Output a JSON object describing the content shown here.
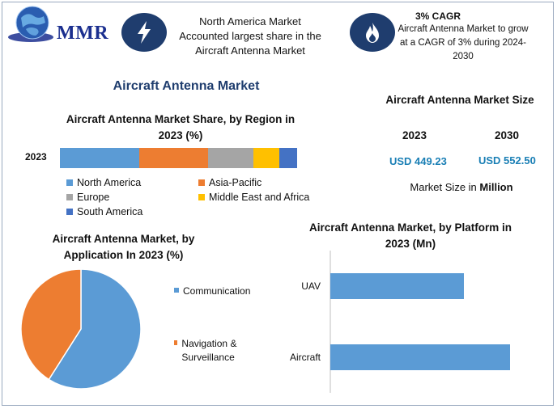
{
  "brand": {
    "logo_text": "MMR"
  },
  "header": {
    "box1_text": "North America Market Accounted largest share in the Aircraft Antenna Market",
    "box1_icon": "lightning-icon",
    "box2_title": "3% CAGR",
    "box2_text": "Aircraft Antenna Market to grow at a CAGR of 3% during 2024-2030",
    "box2_icon": "flame-icon"
  },
  "main_title": "Aircraft Antenna Market",
  "market_size": {
    "title": "Aircraft Antenna Market Size",
    "year1": "2023",
    "year2": "2030",
    "value1": "USD 449.23",
    "value2": "USD 552.50",
    "note_prefix": "Market Size in ",
    "note_unit": "Million"
  },
  "colors": {
    "north_america": "#5b9bd5",
    "asia_pacific": "#ed7d31",
    "europe": "#a5a5a5",
    "middle_east_africa": "#ffc000",
    "south_america": "#4472c4",
    "icon_circle": "#1f3d6e"
  },
  "chart_data": [
    {
      "type": "bar",
      "orientation": "horizontal-stacked",
      "title": "Aircraft Antenna Market Share, by Region in 2023 (%)",
      "categories": [
        "2023"
      ],
      "series": [
        {
          "name": "North America",
          "values": [
            33.5
          ]
        },
        {
          "name": "Asia-Pacific",
          "values": [
            29
          ]
        },
        {
          "name": "Europe",
          "values": [
            19
          ]
        },
        {
          "name": "Middle East and Africa",
          "values": [
            11
          ]
        },
        {
          "name": "South America",
          "values": [
            7.5
          ]
        }
      ],
      "legend": "bottom"
    },
    {
      "type": "pie",
      "title": "Aircraft Antenna Market, by Application In 2023 (%)",
      "labels": [
        "Communication",
        "Navigation & Surveillance"
      ],
      "values": [
        59,
        41
      ],
      "colors": [
        "#5b9bd5",
        "#ed7d31"
      ],
      "legend": "right"
    },
    {
      "type": "bar",
      "orientation": "horizontal",
      "title": "Aircraft Antenna Market, by Platform in 2023 (Mn)",
      "categories": [
        "UAV",
        "Aircraft"
      ],
      "values": [
        165,
        222
      ],
      "xlim": [
        0,
        240
      ],
      "color": "#5b9bd5"
    }
  ]
}
